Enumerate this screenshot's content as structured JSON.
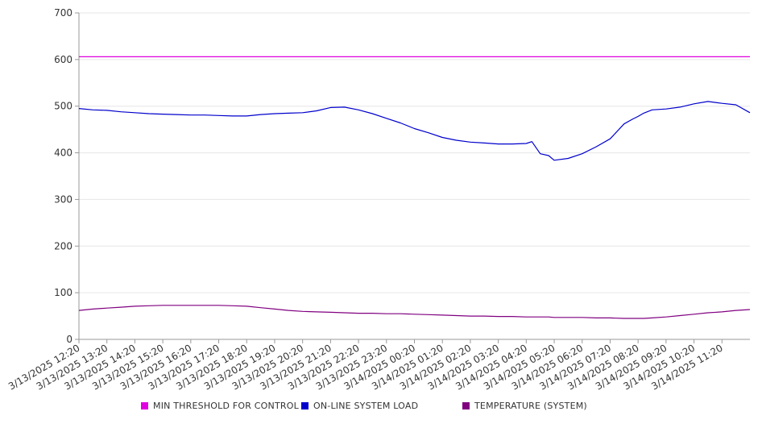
{
  "chart_data": {
    "type": "line",
    "ylim": [
      0,
      700
    ],
    "yticks": [
      0,
      100,
      200,
      300,
      400,
      500,
      600,
      700
    ],
    "xlabels": [
      "3/13/2025 12:20",
      "3/13/2025 13:20",
      "3/13/2025 14:20",
      "3/13/2025 15:20",
      "3/13/2025 16:20",
      "3/13/2025 17:20",
      "3/13/2025 18:20",
      "3/13/2025 19:20",
      "3/13/2025 20:20",
      "3/13/2025 21:20",
      "3/13/2025 22:20",
      "3/13/2025 23:20",
      "3/14/2025 00:20",
      "3/14/2025 01:20",
      "3/14/2025 02:20",
      "3/14/2025 03:20",
      "3/14/2025 04:20",
      "3/14/2025 05:20",
      "3/14/2025 06:20",
      "3/14/2025 07:20",
      "3/14/2025 08:20",
      "3/14/2025 09:20",
      "3/14/2025 10:20",
      "3/14/2025 11:20"
    ],
    "x_hours": [
      0,
      0.5,
      1,
      1.5,
      2,
      2.5,
      3,
      3.5,
      4,
      4.5,
      5,
      5.5,
      6,
      6.5,
      7,
      7.5,
      8,
      8.5,
      9,
      9.5,
      10,
      10.5,
      11,
      11.5,
      12,
      12.5,
      13,
      13.5,
      14,
      14.5,
      15,
      15.5,
      16,
      16.2,
      16.5,
      16.8,
      17,
      17.5,
      18,
      18.5,
      19,
      19.5,
      19.8,
      20,
      20.2,
      20.5,
      21,
      21.5,
      22,
      22.5,
      23,
      23.5,
      24
    ],
    "grid": true,
    "legend_position": "bottom",
    "series": [
      {
        "name": "MIN THRESHOLD FOR CONTROL",
        "color": "#E000E0",
        "values": [
          606,
          606,
          606,
          606,
          606,
          606,
          606,
          606,
          606,
          606,
          606,
          606,
          606,
          606,
          606,
          606,
          606,
          606,
          606,
          606,
          606,
          606,
          606,
          606,
          606,
          606,
          606,
          606,
          606,
          606,
          606,
          606,
          606,
          606,
          606,
          606,
          606,
          606,
          606,
          606,
          606,
          606,
          606,
          606,
          606,
          606,
          606,
          606,
          606,
          606,
          606,
          606,
          606
        ]
      },
      {
        "name": "ON-LINE SYSTEM LOAD",
        "color": "#0000CC",
        "values": [
          495,
          492,
          491,
          488,
          486,
          484,
          483,
          482,
          481,
          481,
          480,
          479,
          479,
          482,
          484,
          485,
          486,
          490,
          497,
          498,
          492,
          484,
          474,
          464,
          452,
          443,
          433,
          427,
          423,
          421,
          419,
          419,
          420,
          424,
          398,
          394,
          384,
          388,
          398,
          413,
          430,
          462,
          472,
          478,
          485,
          492,
          494,
          498,
          505,
          510,
          506,
          503,
          486
        ]
      },
      {
        "name": "TEMPERATURE (SYSTEM)",
        "color": "#800080",
        "values": [
          62,
          65,
          67,
          69,
          71,
          72,
          73,
          73,
          73,
          73,
          73,
          72,
          71,
          68,
          65,
          62,
          60,
          59,
          58,
          57,
          56,
          56,
          55,
          55,
          54,
          53,
          52,
          51,
          50,
          50,
          49,
          49,
          48,
          48,
          48,
          48,
          47,
          47,
          47,
          46,
          46,
          45,
          45,
          45,
          45,
          46,
          48,
          51,
          54,
          57,
          59,
          62,
          64
        ]
      }
    ]
  }
}
